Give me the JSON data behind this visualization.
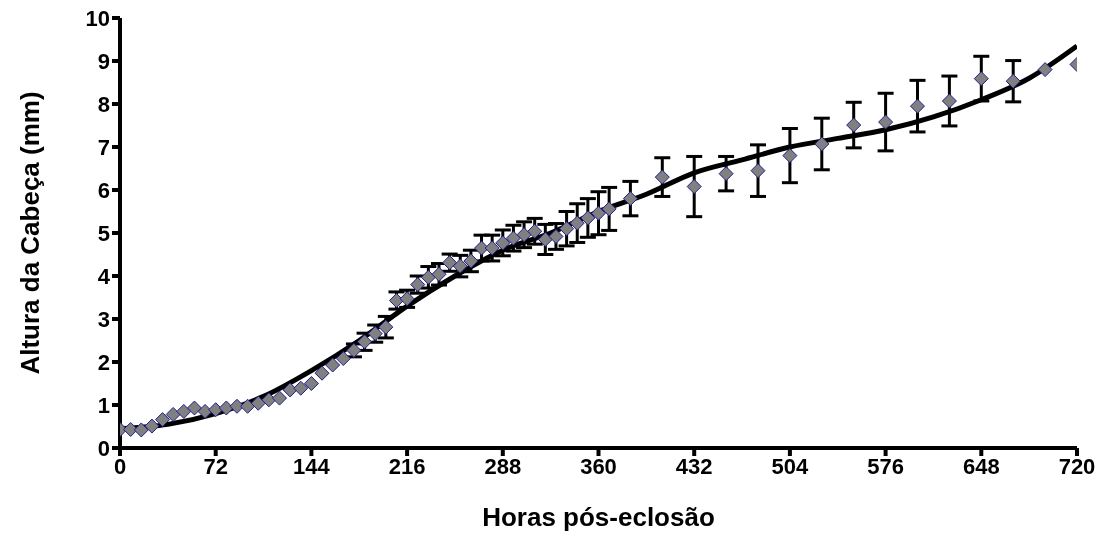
{
  "chart_data": {
    "type": "scatter",
    "xlabel": "Horas pós-eclosão",
    "ylabel": "Altura da Cabeça (mm)",
    "xlim": [
      0,
      720
    ],
    "xticks": [
      0,
      72,
      144,
      216,
      288,
      360,
      432,
      504,
      576,
      648,
      720
    ],
    "ylim": [
      0,
      10
    ],
    "yticks": [
      0,
      1,
      2,
      3,
      4,
      5,
      6,
      7,
      8,
      9,
      10
    ],
    "series": [
      {
        "type": "scatter",
        "color": "#808080",
        "marker": "diamond",
        "x": [
          0,
          8,
          16,
          24,
          32,
          40,
          48,
          56,
          64,
          72,
          80,
          88,
          96,
          104,
          112,
          120,
          128,
          136,
          144,
          152,
          160,
          168,
          176,
          184,
          192,
          200,
          208,
          216,
          224,
          232,
          240,
          248,
          256,
          264,
          272,
          280,
          288,
          296,
          304,
          312,
          320,
          328,
          336,
          344,
          352,
          360,
          368,
          384,
          408,
          432,
          456,
          480,
          504,
          528,
          552,
          576,
          600,
          624,
          648,
          672,
          696,
          720
        ],
        "values": [
          0.43,
          0.43,
          0.42,
          0.51,
          0.66,
          0.78,
          0.85,
          0.93,
          0.85,
          0.89,
          0.93,
          0.97,
          0.97,
          1.04,
          1.12,
          1.16,
          1.35,
          1.39,
          1.5,
          1.74,
          1.93,
          2.08,
          2.27,
          2.47,
          2.66,
          2.81,
          3.43,
          3.47,
          3.8,
          3.97,
          4.04,
          4.31,
          4.23,
          4.35,
          4.65,
          4.65,
          4.77,
          4.88,
          4.96,
          5.04,
          4.85,
          4.92,
          5.1,
          5.23,
          5.35,
          5.46,
          5.56,
          5.8,
          6.3,
          6.08,
          6.38,
          6.45,
          6.8,
          7.07,
          7.51,
          7.58,
          7.95,
          8.07,
          8.59,
          8.53,
          8.8,
          8.92
        ],
        "errors": [
          null,
          null,
          null,
          null,
          null,
          null,
          null,
          null,
          null,
          null,
          null,
          null,
          null,
          null,
          null,
          null,
          null,
          null,
          null,
          null,
          null,
          null,
          0.15,
          0.2,
          0.2,
          0.25,
          0.2,
          0.2,
          0.2,
          0.25,
          0.25,
          0.2,
          0.25,
          0.25,
          0.3,
          0.3,
          0.3,
          0.3,
          0.3,
          0.3,
          0.35,
          0.3,
          0.4,
          0.45,
          0.45,
          0.5,
          0.5,
          0.4,
          0.45,
          0.7,
          0.4,
          0.6,
          0.63,
          0.6,
          0.53,
          0.67,
          0.6,
          0.58,
          0.52,
          0.48,
          null,
          null
        ]
      },
      {
        "type": "line",
        "color": "#000000",
        "marker": "none",
        "x": [
          0,
          36,
          72,
          108,
          144,
          180,
          216,
          252,
          288,
          324,
          360,
          396,
          432,
          468,
          504,
          540,
          576,
          612,
          648,
          684,
          720
        ],
        "values": [
          0.45,
          0.55,
          0.8,
          1.2,
          1.8,
          2.5,
          3.3,
          4.0,
          4.6,
          5.0,
          5.5,
          5.9,
          6.4,
          6.7,
          7.0,
          7.2,
          7.4,
          7.7,
          8.1,
          8.6,
          9.35
        ]
      }
    ]
  }
}
